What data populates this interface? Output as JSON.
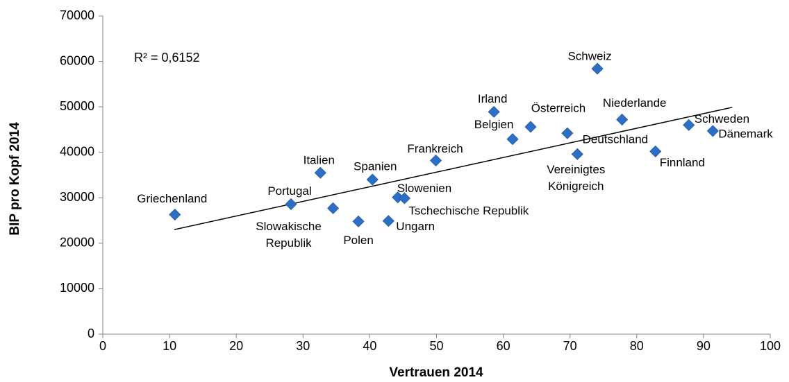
{
  "chart_data": {
    "type": "scatter",
    "x_label": "Vertrauen 2014",
    "y_label": "BIP pro Kopf 2014",
    "annotation": "R² = 0,6152",
    "color": "#2c6fc4",
    "labels": [
      [
        "Griechenland"
      ],
      [
        "Portugal"
      ],
      [
        "Italien"
      ],
      [
        "Slowakische",
        "Republik"
      ],
      [
        "Polen"
      ],
      [
        "Spanien"
      ],
      [
        "Ungarn"
      ],
      [
        "Slowenien"
      ],
      [
        "Tschechische Republik"
      ],
      [
        "Frankreich"
      ],
      [
        "Irland"
      ],
      [
        "Belgien"
      ],
      [
        "Österreich"
      ],
      [
        "Deutschland"
      ],
      [
        "Vereinigtes",
        "Königreich"
      ],
      [
        "Schweiz"
      ],
      [
        "Niederlande"
      ],
      [
        "Finnland"
      ],
      [
        "Schweden"
      ],
      [
        "Dänemark"
      ]
    ],
    "x": [
      10.8,
      28.2,
      32.6,
      34.5,
      38.3,
      40.4,
      42.8,
      44.2,
      45.2,
      49.9,
      58.6,
      61.4,
      64.1,
      69.6,
      71.1,
      74.1,
      77.8,
      82.8,
      87.8,
      91.4
    ],
    "values": [
      26300,
      28600,
      35500,
      27700,
      24800,
      34000,
      24900,
      30100,
      29900,
      38200,
      48900,
      42900,
      45600,
      44200,
      39600,
      58400,
      47200,
      40200,
      46000,
      44700
    ],
    "trendline": {
      "x": [
        10.7,
        94.3
      ],
      "values": [
        23000,
        49900
      ]
    },
    "xlim": [
      0,
      100
    ],
    "xticks": [
      0,
      10,
      20,
      30,
      40,
      50,
      60,
      70,
      80,
      90,
      100
    ],
    "ylim": [
      0,
      70000
    ],
    "yticks": [
      0,
      10000,
      20000,
      30000,
      40000,
      50000,
      60000,
      70000
    ],
    "grid": false
  }
}
